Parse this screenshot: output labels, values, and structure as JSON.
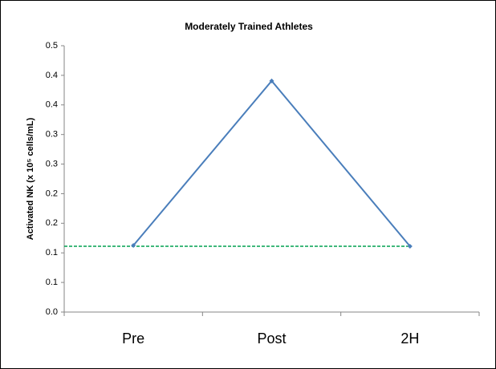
{
  "chart_data": {
    "type": "line",
    "title": "Moderately Trained Athletes",
    "y_label": "Activated NK (x 10⁵ cells/mL)",
    "categories": [
      "Pre",
      "Post",
      "2H"
    ],
    "series": [
      {
        "color": "#4a7ebb",
        "values": [
          0.125,
          0.434,
          0.1235
        ]
      }
    ],
    "reference_line": {
      "value": 0.1235,
      "color": "#00a050",
      "dashed": true
    },
    "ylim": [
      0,
      0.5
    ],
    "yticks": [
      {
        "value": 0,
        "label": "0.0"
      },
      {
        "value": 0.0556,
        "label": "0.1"
      },
      {
        "value": 0.1111,
        "label": "0.1"
      },
      {
        "value": 0.1667,
        "label": "0.2"
      },
      {
        "value": 0.2222,
        "label": "0.2"
      },
      {
        "value": 0.2778,
        "label": "0.3"
      },
      {
        "value": 0.3333,
        "label": "0.3"
      },
      {
        "value": 0.3889,
        "label": "0.4"
      },
      {
        "value": 0.4444,
        "label": "0.4"
      },
      0.5
    ],
    "grid": false
  }
}
